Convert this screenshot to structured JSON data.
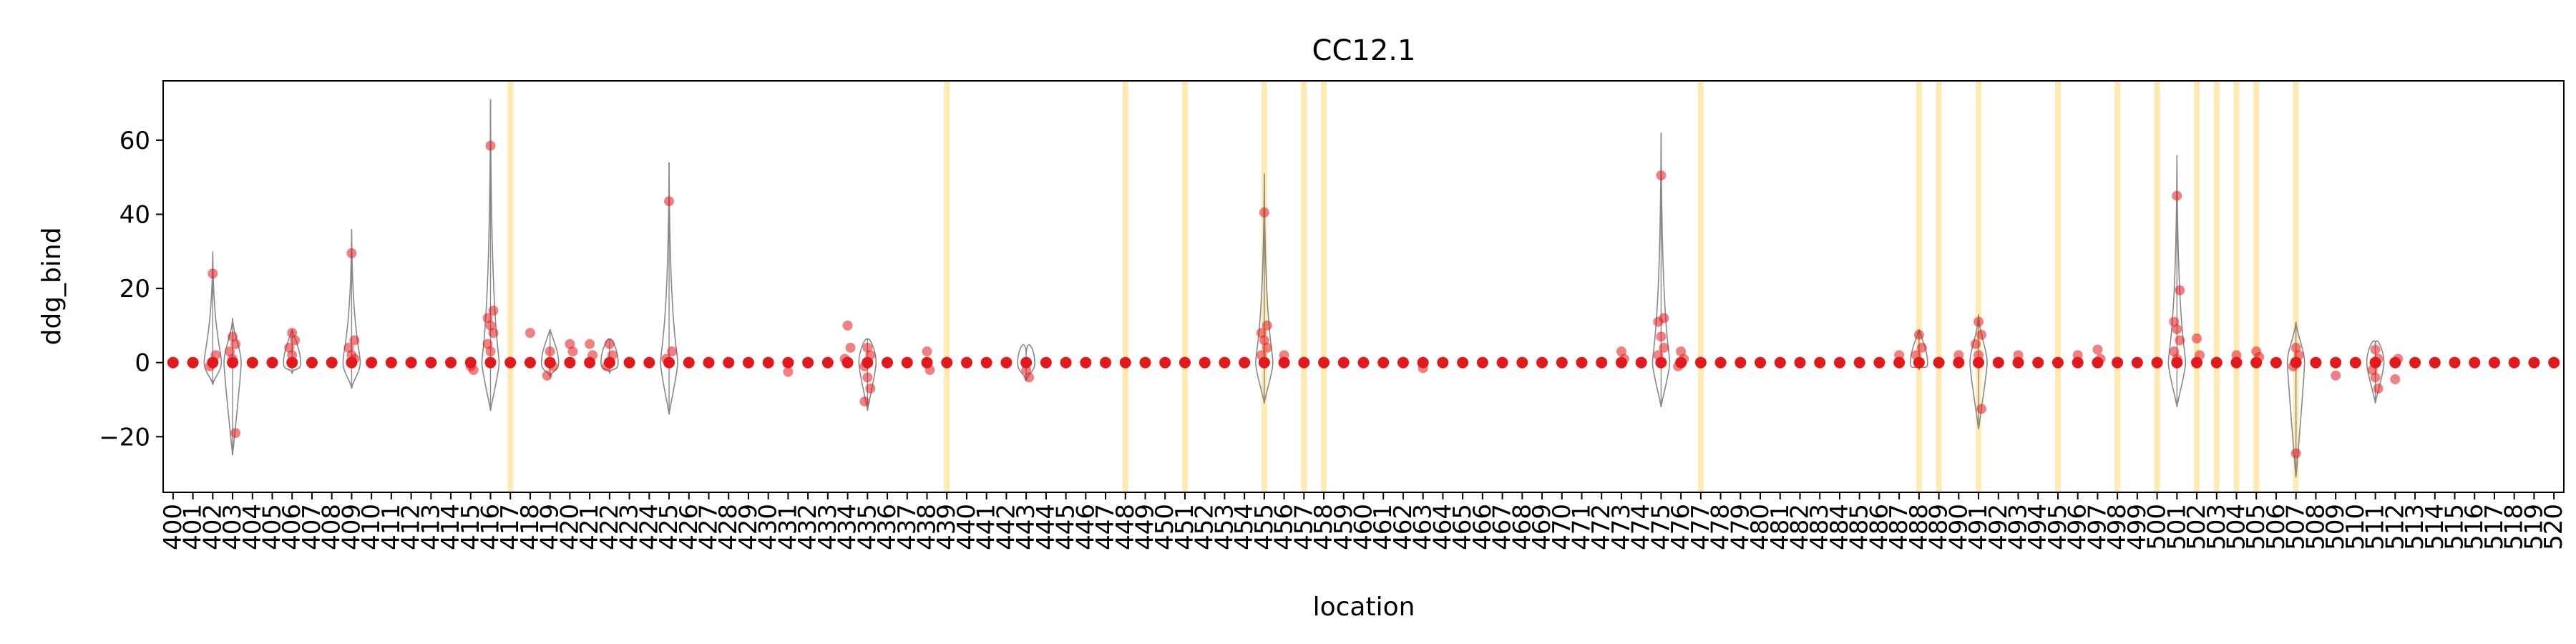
{
  "chart_data": {
    "type": "violin-strip",
    "title": "CC12.1",
    "xlabel": "location",
    "ylabel": "ddg_bind",
    "ylim": [
      -35,
      76
    ],
    "yticks": [
      -20,
      0,
      20,
      40,
      60
    ],
    "grid": false,
    "colors": {
      "points": "#e31a1c",
      "violin_edge": "#888888",
      "highlight": "#ffe9a8"
    },
    "categories": [
      "400",
      "401",
      "402",
      "403",
      "404",
      "405",
      "406",
      "407",
      "408",
      "409",
      "410",
      "411",
      "412",
      "413",
      "414",
      "415",
      "416",
      "417",
      "418",
      "419",
      "420",
      "421",
      "422",
      "423",
      "424",
      "425",
      "426",
      "427",
      "428",
      "429",
      "430",
      "431",
      "432",
      "433",
      "434",
      "435",
      "436",
      "437",
      "438",
      "439",
      "440",
      "441",
      "442",
      "443",
      "444",
      "445",
      "446",
      "447",
      "448",
      "449",
      "450",
      "451",
      "452",
      "453",
      "454",
      "455",
      "456",
      "457",
      "458",
      "459",
      "460",
      "461",
      "462",
      "463",
      "464",
      "465",
      "466",
      "467",
      "468",
      "469",
      "470",
      "471",
      "472",
      "473",
      "474",
      "475",
      "476",
      "477",
      "478",
      "479",
      "480",
      "481",
      "482",
      "483",
      "484",
      "485",
      "486",
      "487",
      "488",
      "489",
      "490",
      "491",
      "492",
      "493",
      "494",
      "495",
      "496",
      "497",
      "498",
      "499",
      "500",
      "501",
      "502",
      "503",
      "504",
      "505",
      "506",
      "507",
      "508",
      "509",
      "510",
      "511",
      "512",
      "513",
      "514",
      "515",
      "516",
      "517",
      "518",
      "519",
      "520"
    ],
    "highlighted_locations": [
      "417",
      "439",
      "448",
      "451",
      "455",
      "457",
      "458",
      "477",
      "488",
      "489",
      "491",
      "495",
      "498",
      "500",
      "502",
      "503",
      "504",
      "505",
      "507"
    ],
    "violins": [
      {
        "loc": "402",
        "min": -6,
        "max": 30
      },
      {
        "loc": "403",
        "min": -25,
        "max": 12
      },
      {
        "loc": "406",
        "min": -3,
        "max": 9
      },
      {
        "loc": "409",
        "min": -7,
        "max": 36
      },
      {
        "loc": "416",
        "min": -13,
        "max": 71
      },
      {
        "loc": "419",
        "min": -4,
        "max": 9
      },
      {
        "loc": "422",
        "min": -3,
        "max": 6
      },
      {
        "loc": "425",
        "min": -14,
        "max": 54
      },
      {
        "loc": "435",
        "min": -13,
        "max": 6
      },
      {
        "loc": "443",
        "min": -5,
        "max": 2
      },
      {
        "loc": "455",
        "min": -11,
        "max": 51
      },
      {
        "loc": "475",
        "min": -12,
        "max": 62
      },
      {
        "loc": "488",
        "min": -2,
        "max": 9
      },
      {
        "loc": "491",
        "min": -18,
        "max": 13
      },
      {
        "loc": "501",
        "min": -12,
        "max": 56
      },
      {
        "loc": "507",
        "min": -31,
        "max": 11
      },
      {
        "loc": "511",
        "min": -11,
        "max": 5
      }
    ],
    "points": [
      {
        "loc": "402",
        "y": [
          24,
          2,
          -1
        ]
      },
      {
        "loc": "403",
        "y": [
          7,
          5,
          3,
          1,
          -19
        ]
      },
      {
        "loc": "406",
        "y": [
          8,
          6,
          4,
          2
        ]
      },
      {
        "loc": "409",
        "y": [
          29.5,
          6,
          4,
          2,
          1
        ]
      },
      {
        "loc": "415",
        "y": [
          -1,
          -2
        ]
      },
      {
        "loc": "416",
        "y": [
          58.5,
          14,
          12,
          10,
          8,
          5,
          3
        ]
      },
      {
        "loc": "418",
        "y": [
          8
        ]
      },
      {
        "loc": "419",
        "y": [
          3,
          -1,
          -3.5
        ]
      },
      {
        "loc": "420",
        "y": [
          5,
          3
        ]
      },
      {
        "loc": "421",
        "y": [
          5,
          2
        ]
      },
      {
        "loc": "422",
        "y": [
          5,
          2,
          -1
        ]
      },
      {
        "loc": "425",
        "y": [
          43.5,
          3,
          1
        ]
      },
      {
        "loc": "431",
        "y": [
          -2.5
        ]
      },
      {
        "loc": "434",
        "y": [
          10,
          4,
          1
        ]
      },
      {
        "loc": "435",
        "y": [
          4,
          2,
          -1,
          -4,
          -7,
          -10.5
        ]
      },
      {
        "loc": "438",
        "y": [
          3,
          -2
        ]
      },
      {
        "loc": "443",
        "y": [
          -2,
          -4
        ]
      },
      {
        "loc": "455",
        "y": [
          40.5,
          10,
          8,
          6,
          4,
          2
        ]
      },
      {
        "loc": "456",
        "y": [
          2
        ]
      },
      {
        "loc": "463",
        "y": [
          -1.5
        ]
      },
      {
        "loc": "473",
        "y": [
          3,
          1
        ]
      },
      {
        "loc": "475",
        "y": [
          50.5,
          12,
          11,
          7,
          4,
          2
        ]
      },
      {
        "loc": "476",
        "y": [
          3,
          1,
          -1
        ]
      },
      {
        "loc": "487",
        "y": [
          2
        ]
      },
      {
        "loc": "488",
        "y": [
          7.5,
          4,
          2
        ]
      },
      {
        "loc": "490",
        "y": [
          2
        ]
      },
      {
        "loc": "491",
        "y": [
          11,
          7.5,
          5,
          2,
          -12.5
        ]
      },
      {
        "loc": "493",
        "y": [
          2
        ]
      },
      {
        "loc": "496",
        "y": [
          2
        ]
      },
      {
        "loc": "497",
        "y": [
          3.5,
          1
        ]
      },
      {
        "loc": "501",
        "y": [
          45,
          19.5,
          11,
          9,
          6,
          3,
          1
        ]
      },
      {
        "loc": "502",
        "y": [
          6.5,
          2
        ]
      },
      {
        "loc": "504",
        "y": [
          2
        ]
      },
      {
        "loc": "505",
        "y": [
          3,
          1.5
        ]
      },
      {
        "loc": "507",
        "y": [
          4,
          2,
          -1,
          -24.5
        ]
      },
      {
        "loc": "509",
        "y": [
          -3.5
        ]
      },
      {
        "loc": "511",
        "y": [
          3.5,
          1,
          -2,
          -4,
          -7
        ]
      },
      {
        "loc": "512",
        "y": [
          -4.5,
          1
        ]
      }
    ]
  }
}
